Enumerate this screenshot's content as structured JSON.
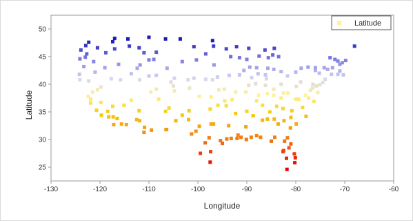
{
  "chart_data": {
    "type": "scatter",
    "xlabel": "Longitude",
    "ylabel": "Latitude",
    "xlim": [
      -130,
      -60
    ],
    "ylim": [
      22.5,
      52.5
    ],
    "xticks": [
      -130,
      -120,
      -110,
      -100,
      -90,
      -80,
      -70,
      -60
    ],
    "xtick_labels": [
      "-130",
      "-120",
      "-110",
      "-100",
      "-90",
      "-80",
      "-70",
      "-60"
    ],
    "yticks": [
      25,
      30,
      35,
      40,
      45,
      50
    ],
    "ytick_labels": [
      "25",
      "30",
      "35",
      "40",
      "45",
      "50"
    ],
    "legend": {
      "label": "Latitude",
      "placement": "top-right",
      "color": "#fff29a"
    },
    "grid": false,
    "color_scale": {
      "by": "y",
      "stops": [
        {
          "value": 25,
          "color": "#e50000"
        },
        {
          "value": 30,
          "color": "#f07a14"
        },
        {
          "value": 35,
          "color": "#f5d012"
        },
        {
          "value": 38,
          "color": "#fff29a"
        },
        {
          "value": 41,
          "color": "#d6d6f2"
        },
        {
          "value": 45,
          "color": "#7070dd"
        },
        {
          "value": 48,
          "color": "#1a1ab8"
        }
      ]
    },
    "series": [
      {
        "points": [
          [
            -68.0,
            46.9
          ],
          [
            -71.4,
            44.2
          ],
          [
            -72.0,
            44.5
          ],
          [
            -71.0,
            43.6
          ],
          [
            -70.5,
            43.9
          ],
          [
            -73.0,
            44.8
          ],
          [
            -72.5,
            43.0
          ],
          [
            -71.0,
            42.4
          ],
          [
            -73.5,
            42.7
          ],
          [
            -74.0,
            40.9
          ],
          [
            -75.2,
            42.0
          ],
          [
            -76.0,
            42.5
          ],
          [
            -77.5,
            43.1
          ],
          [
            -78.9,
            42.9
          ],
          [
            -80.0,
            42.2
          ],
          [
            -76.5,
            40.0
          ],
          [
            -75.1,
            39.9
          ],
          [
            -74.5,
            40.3
          ],
          [
            -77.0,
            38.9
          ],
          [
            -79.0,
            40.4
          ],
          [
            -81.7,
            41.5
          ],
          [
            -83.0,
            42.3
          ],
          [
            -84.5,
            42.7
          ],
          [
            -85.7,
            42.9
          ],
          [
            -86.2,
            41.7
          ],
          [
            -87.7,
            41.9
          ],
          [
            -89.4,
            43.1
          ],
          [
            -88.0,
            43.0
          ],
          [
            -90.0,
            44.5
          ],
          [
            -91.5,
            44.8
          ],
          [
            -93.3,
            45.0
          ],
          [
            -94.2,
            46.4
          ],
          [
            -92.1,
            46.8
          ],
          [
            -89.6,
            46.5
          ],
          [
            -84.4,
            46.5
          ],
          [
            -84.7,
            45.3
          ],
          [
            -83.5,
            45.0
          ],
          [
            -85.6,
            44.8
          ],
          [
            -86.3,
            46.2
          ],
          [
            -87.5,
            45.1
          ],
          [
            -96.8,
            46.9
          ],
          [
            -100.8,
            46.8
          ],
          [
            -103.6,
            48.2
          ],
          [
            -97.0,
            47.9
          ],
          [
            -98.4,
            45.5
          ],
          [
            -96.7,
            43.5
          ],
          [
            -103.2,
            44.1
          ],
          [
            -100.3,
            44.4
          ],
          [
            -108.5,
            45.8
          ],
          [
            -111.0,
            45.7
          ],
          [
            -112.0,
            46.6
          ],
          [
            -114.0,
            46.9
          ],
          [
            -106.6,
            48.2
          ],
          [
            -110.0,
            48.5
          ],
          [
            -114.3,
            48.2
          ],
          [
            -117.4,
            47.7
          ],
          [
            -122.3,
            47.6
          ],
          [
            -122.9,
            47.0
          ],
          [
            -123.9,
            46.2
          ],
          [
            -122.7,
            45.5
          ],
          [
            -123.0,
            44.9
          ],
          [
            -121.3,
            44.1
          ],
          [
            -117.0,
            46.4
          ],
          [
            -116.2,
            43.6
          ],
          [
            -112.4,
            42.9
          ],
          [
            -111.8,
            43.5
          ],
          [
            -110.0,
            44.4
          ],
          [
            -104.8,
            41.1
          ],
          [
            -106.3,
            42.9
          ],
          [
            -109.0,
            44.5
          ],
          [
            -119.8,
            39.5
          ],
          [
            -117.7,
            41.0
          ],
          [
            -115.8,
            40.8
          ],
          [
            -111.9,
            40.8
          ],
          [
            -110.0,
            41.5
          ],
          [
            -105.0,
            39.7
          ],
          [
            -104.8,
            38.8
          ],
          [
            -108.5,
            39.1
          ],
          [
            -96.0,
            41.3
          ],
          [
            -97.0,
            40.8
          ],
          [
            -98.4,
            40.9
          ],
          [
            -100.8,
            41.1
          ],
          [
            -93.6,
            41.6
          ],
          [
            -91.5,
            41.7
          ],
          [
            -90.6,
            42.5
          ],
          [
            -89.6,
            39.8
          ],
          [
            -88.2,
            40.1
          ],
          [
            -86.2,
            39.8
          ],
          [
            -84.5,
            39.1
          ],
          [
            -83.0,
            40.0
          ],
          [
            -82.5,
            38.4
          ],
          [
            -84.5,
            38.0
          ],
          [
            -85.8,
            38.3
          ],
          [
            -90.2,
            38.6
          ],
          [
            -92.3,
            38.6
          ],
          [
            -94.6,
            39.1
          ],
          [
            -95.7,
            39.0
          ],
          [
            -97.3,
            37.7
          ],
          [
            -99.7,
            37.8
          ],
          [
            -101.7,
            39.3
          ],
          [
            -122.4,
            37.8
          ],
          [
            -121.9,
            37.3
          ],
          [
            -121.5,
            38.6
          ],
          [
            -119.8,
            36.7
          ],
          [
            -124.1,
            40.8
          ],
          [
            -124.2,
            41.8
          ],
          [
            -122.3,
            40.6
          ],
          [
            -120.5,
            39.0
          ],
          [
            -117.4,
            36.0
          ],
          [
            -115.1,
            36.2
          ],
          [
            -113.6,
            37.1
          ],
          [
            -111.9,
            33.4
          ],
          [
            -110.9,
            32.2
          ],
          [
            -112.0,
            35.2
          ],
          [
            -106.6,
            35.1
          ],
          [
            -105.9,
            35.7
          ],
          [
            -103.2,
            34.4
          ],
          [
            -106.4,
            31.8
          ],
          [
            -104.5,
            33.4
          ],
          [
            -101.8,
            35.2
          ],
          [
            -101.9,
            33.6
          ],
          [
            -99.7,
            32.4
          ],
          [
            -97.5,
            35.5
          ],
          [
            -95.9,
            36.2
          ],
          [
            -94.2,
            36.1
          ],
          [
            -92.3,
            34.7
          ],
          [
            -90.0,
            35.1
          ],
          [
            -88.7,
            34.3
          ],
          [
            -86.8,
            36.2
          ],
          [
            -85.3,
            35.0
          ],
          [
            -83.9,
            36.0
          ],
          [
            -82.6,
            35.6
          ],
          [
            -80.8,
            35.2
          ],
          [
            -78.6,
            35.8
          ],
          [
            -77.9,
            34.2
          ],
          [
            -79.9,
            32.8
          ],
          [
            -81.0,
            34.0
          ],
          [
            -81.1,
            32.1
          ],
          [
            -82.4,
            33.4
          ],
          [
            -84.4,
            33.7
          ],
          [
            -83.6,
            32.8
          ],
          [
            -85.8,
            33.7
          ],
          [
            -86.8,
            33.5
          ],
          [
            -88.0,
            30.7
          ],
          [
            -90.2,
            32.3
          ],
          [
            -91.2,
            30.4
          ],
          [
            -92.0,
            30.2
          ],
          [
            -93.7,
            32.5
          ],
          [
            -90.1,
            30.0
          ],
          [
            -89.1,
            30.4
          ],
          [
            -87.2,
            30.4
          ],
          [
            -84.3,
            30.4
          ],
          [
            -82.3,
            29.7
          ],
          [
            -81.7,
            30.3
          ],
          [
            -81.0,
            29.2
          ],
          [
            -81.4,
            28.5
          ],
          [
            -82.5,
            28.0
          ],
          [
            -82.6,
            27.8
          ],
          [
            -81.9,
            26.6
          ],
          [
            -80.1,
            26.7
          ],
          [
            -80.2,
            25.8
          ],
          [
            -81.8,
            24.6
          ],
          [
            -80.3,
            27.4
          ],
          [
            -95.4,
            29.8
          ],
          [
            -94.1,
            30.1
          ],
          [
            -96.8,
            32.8
          ],
          [
            -97.3,
            32.8
          ],
          [
            -97.7,
            30.3
          ],
          [
            -98.5,
            29.4
          ],
          [
            -97.4,
            27.8
          ],
          [
            -97.5,
            25.9
          ],
          [
            -100.4,
            31.5
          ],
          [
            -101.3,
            31.0
          ],
          [
            -99.5,
            27.5
          ],
          [
            -106.5,
            31.8
          ],
          [
            -111.0,
            31.3
          ],
          [
            -114.6,
            32.7
          ],
          [
            -117.2,
            32.7
          ],
          [
            -118.2,
            34.1
          ],
          [
            -117.3,
            34.1
          ],
          [
            -119.7,
            34.4
          ],
          [
            -120.7,
            35.3
          ],
          [
            -116.5,
            33.8
          ],
          [
            -115.6,
            32.8
          ],
          [
            -121.9,
            36.6
          ],
          [
            -118.4,
            35.1
          ],
          [
            -112.5,
            33.6
          ],
          [
            -109.5,
            31.7
          ],
          [
            -95.0,
            29.3
          ],
          [
            -91.8,
            30.8
          ],
          [
            -93.2,
            30.2
          ],
          [
            -85.0,
            29.7
          ],
          [
            -77.4,
            37.5
          ],
          [
            -76.3,
            36.9
          ],
          [
            -79.4,
            37.3
          ],
          [
            -80.0,
            37.3
          ],
          [
            -75.5,
            38.5
          ],
          [
            -75.8,
            39.7
          ],
          [
            -76.6,
            39.3
          ],
          [
            -72.7,
            41.8
          ],
          [
            -71.4,
            41.8
          ],
          [
            -70.3,
            41.7
          ],
          [
            -69.8,
            44.3
          ],
          [
            -74.2,
            43.0
          ],
          [
            -108.0,
            37.3
          ],
          [
            -109.6,
            38.6
          ],
          [
            -113.6,
            41.9
          ],
          [
            -119.0,
            43.0
          ],
          [
            -121.0,
            42.2
          ],
          [
            -123.3,
            43.2
          ],
          [
            -124.1,
            44.6
          ],
          [
            -118.8,
            45.7
          ],
          [
            -120.5,
            46.6
          ],
          [
            -117.0,
            48.3
          ],
          [
            -88.0,
            37.0
          ],
          [
            -87.6,
            38.0
          ],
          [
            -83.0,
            37.5
          ],
          [
            -81.6,
            38.4
          ],
          [
            -79.9,
            39.6
          ],
          [
            -86.0,
            41.0
          ],
          [
            -93.0,
            37.2
          ],
          [
            -94.5,
            37.0
          ],
          [
            -105.5,
            40.4
          ],
          [
            -102.0,
            40.8
          ],
          [
            -108.5,
            41.6
          ],
          [
            -89.0,
            41.2
          ],
          [
            -78.0,
            38.0
          ],
          [
            -76.0,
            43.0
          ]
        ]
      }
    ]
  }
}
